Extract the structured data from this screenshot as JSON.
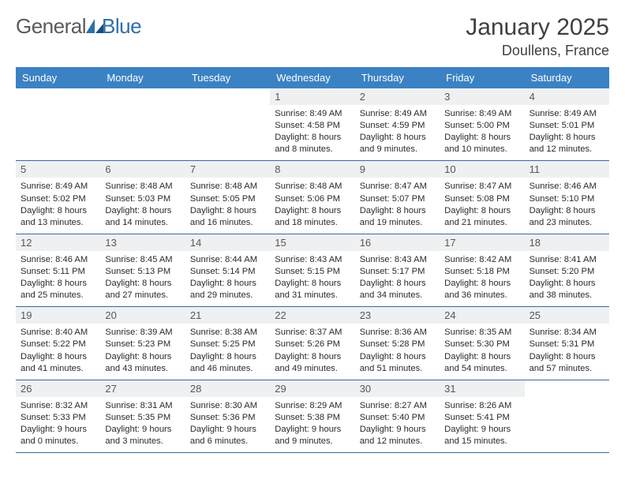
{
  "logo": {
    "word1": "General",
    "word2": "Blue"
  },
  "title": "January 2025",
  "location": "Doullens, France",
  "colors": {
    "header_bg": "#3b82c4",
    "header_text": "#ffffff",
    "daynum_bg": "#eef0f2",
    "daynum_text": "#575757",
    "body_text": "#2a2a2a",
    "rule": "#3b6a9a",
    "title_text": "#404040",
    "logo_gray": "#5a5a5a",
    "logo_blue": "#2f6fa8",
    "page_bg": "#ffffff"
  },
  "dayNames": [
    "Sunday",
    "Monday",
    "Tuesday",
    "Wednesday",
    "Thursday",
    "Friday",
    "Saturday"
  ],
  "weeks": [
    [
      {
        "n": "",
        "sr": "",
        "ss": "",
        "dl": ""
      },
      {
        "n": "",
        "sr": "",
        "ss": "",
        "dl": ""
      },
      {
        "n": "",
        "sr": "",
        "ss": "",
        "dl": ""
      },
      {
        "n": "1",
        "sr": "8:49 AM",
        "ss": "4:58 PM",
        "dl": "8 hours and 8 minutes."
      },
      {
        "n": "2",
        "sr": "8:49 AM",
        "ss": "4:59 PM",
        "dl": "8 hours and 9 minutes."
      },
      {
        "n": "3",
        "sr": "8:49 AM",
        "ss": "5:00 PM",
        "dl": "8 hours and 10 minutes."
      },
      {
        "n": "4",
        "sr": "8:49 AM",
        "ss": "5:01 PM",
        "dl": "8 hours and 12 minutes."
      }
    ],
    [
      {
        "n": "5",
        "sr": "8:49 AM",
        "ss": "5:02 PM",
        "dl": "8 hours and 13 minutes."
      },
      {
        "n": "6",
        "sr": "8:48 AM",
        "ss": "5:03 PM",
        "dl": "8 hours and 14 minutes."
      },
      {
        "n": "7",
        "sr": "8:48 AM",
        "ss": "5:05 PM",
        "dl": "8 hours and 16 minutes."
      },
      {
        "n": "8",
        "sr": "8:48 AM",
        "ss": "5:06 PM",
        "dl": "8 hours and 18 minutes."
      },
      {
        "n": "9",
        "sr": "8:47 AM",
        "ss": "5:07 PM",
        "dl": "8 hours and 19 minutes."
      },
      {
        "n": "10",
        "sr": "8:47 AM",
        "ss": "5:08 PM",
        "dl": "8 hours and 21 minutes."
      },
      {
        "n": "11",
        "sr": "8:46 AM",
        "ss": "5:10 PM",
        "dl": "8 hours and 23 minutes."
      }
    ],
    [
      {
        "n": "12",
        "sr": "8:46 AM",
        "ss": "5:11 PM",
        "dl": "8 hours and 25 minutes."
      },
      {
        "n": "13",
        "sr": "8:45 AM",
        "ss": "5:13 PM",
        "dl": "8 hours and 27 minutes."
      },
      {
        "n": "14",
        "sr": "8:44 AM",
        "ss": "5:14 PM",
        "dl": "8 hours and 29 minutes."
      },
      {
        "n": "15",
        "sr": "8:43 AM",
        "ss": "5:15 PM",
        "dl": "8 hours and 31 minutes."
      },
      {
        "n": "16",
        "sr": "8:43 AM",
        "ss": "5:17 PM",
        "dl": "8 hours and 34 minutes."
      },
      {
        "n": "17",
        "sr": "8:42 AM",
        "ss": "5:18 PM",
        "dl": "8 hours and 36 minutes."
      },
      {
        "n": "18",
        "sr": "8:41 AM",
        "ss": "5:20 PM",
        "dl": "8 hours and 38 minutes."
      }
    ],
    [
      {
        "n": "19",
        "sr": "8:40 AM",
        "ss": "5:22 PM",
        "dl": "8 hours and 41 minutes."
      },
      {
        "n": "20",
        "sr": "8:39 AM",
        "ss": "5:23 PM",
        "dl": "8 hours and 43 minutes."
      },
      {
        "n": "21",
        "sr": "8:38 AM",
        "ss": "5:25 PM",
        "dl": "8 hours and 46 minutes."
      },
      {
        "n": "22",
        "sr": "8:37 AM",
        "ss": "5:26 PM",
        "dl": "8 hours and 49 minutes."
      },
      {
        "n": "23",
        "sr": "8:36 AM",
        "ss": "5:28 PM",
        "dl": "8 hours and 51 minutes."
      },
      {
        "n": "24",
        "sr": "8:35 AM",
        "ss": "5:30 PM",
        "dl": "8 hours and 54 minutes."
      },
      {
        "n": "25",
        "sr": "8:34 AM",
        "ss": "5:31 PM",
        "dl": "8 hours and 57 minutes."
      }
    ],
    [
      {
        "n": "26",
        "sr": "8:32 AM",
        "ss": "5:33 PM",
        "dl": "9 hours and 0 minutes."
      },
      {
        "n": "27",
        "sr": "8:31 AM",
        "ss": "5:35 PM",
        "dl": "9 hours and 3 minutes."
      },
      {
        "n": "28",
        "sr": "8:30 AM",
        "ss": "5:36 PM",
        "dl": "9 hours and 6 minutes."
      },
      {
        "n": "29",
        "sr": "8:29 AM",
        "ss": "5:38 PM",
        "dl": "9 hours and 9 minutes."
      },
      {
        "n": "30",
        "sr": "8:27 AM",
        "ss": "5:40 PM",
        "dl": "9 hours and 12 minutes."
      },
      {
        "n": "31",
        "sr": "8:26 AM",
        "ss": "5:41 PM",
        "dl": "9 hours and 15 minutes."
      },
      {
        "n": "",
        "sr": "",
        "ss": "",
        "dl": ""
      }
    ]
  ],
  "labels": {
    "sunrise": "Sunrise:",
    "sunset": "Sunset:",
    "daylight": "Daylight:"
  }
}
